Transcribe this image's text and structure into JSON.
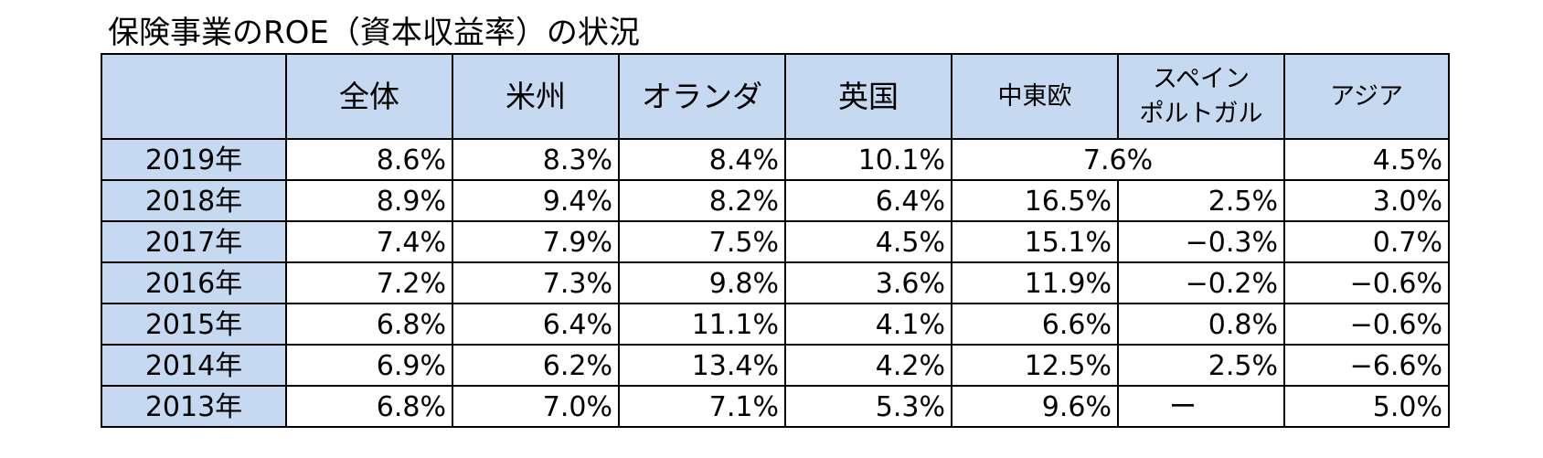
{
  "title": "保険事業のROE（資本収益率）の状況",
  "table": {
    "headers": {
      "corner": "",
      "all": "全体",
      "americas": "米州",
      "netherlands": "オランダ",
      "uk": "英国",
      "cee": "中東欧",
      "spain_portugal_line1": "スペイン",
      "spain_portugal_line2": "ポルトガル",
      "asia": "アジア"
    },
    "rows": [
      {
        "year": "2019年",
        "all": "8.6%",
        "americas": "8.3%",
        "netherlands": "8.4%",
        "uk": "10.1%",
        "cee_spain_merged": "7.6%",
        "asia": "4.5%"
      },
      {
        "year": "2018年",
        "all": "8.9%",
        "americas": "9.4%",
        "netherlands": "8.2%",
        "uk": "6.4%",
        "cee": "16.5%",
        "spain_portugal": "2.5%",
        "asia": "3.0%"
      },
      {
        "year": "2017年",
        "all": "7.4%",
        "americas": "7.9%",
        "netherlands": "7.5%",
        "uk": "4.5%",
        "cee": "15.1%",
        "spain_portugal": "−0.3%",
        "asia": "0.7%"
      },
      {
        "year": "2016年",
        "all": "7.2%",
        "americas": "7.3%",
        "netherlands": "9.8%",
        "uk": "3.6%",
        "cee": "11.9%",
        "spain_portugal": "−0.2%",
        "asia": "−0.6%"
      },
      {
        "year": "2015年",
        "all": "6.8%",
        "americas": "6.4%",
        "netherlands": "11.1%",
        "uk": "4.1%",
        "cee": "6.6%",
        "spain_portugal": "0.8%",
        "asia": "−0.6%"
      },
      {
        "year": "2014年",
        "all": "6.9%",
        "americas": "6.2%",
        "netherlands": "13.4%",
        "uk": "4.2%",
        "cee": "12.5%",
        "spain_portugal": "2.5%",
        "asia": "−6.6%"
      },
      {
        "year": "2013年",
        "all": "6.8%",
        "americas": "7.0%",
        "netherlands": "7.1%",
        "uk": "5.3%",
        "cee": "9.6%",
        "spain_portugal": "ー",
        "asia": "5.0%"
      }
    ]
  },
  "colors": {
    "header_fill": "#c5d9f1",
    "border": "#000000"
  }
}
